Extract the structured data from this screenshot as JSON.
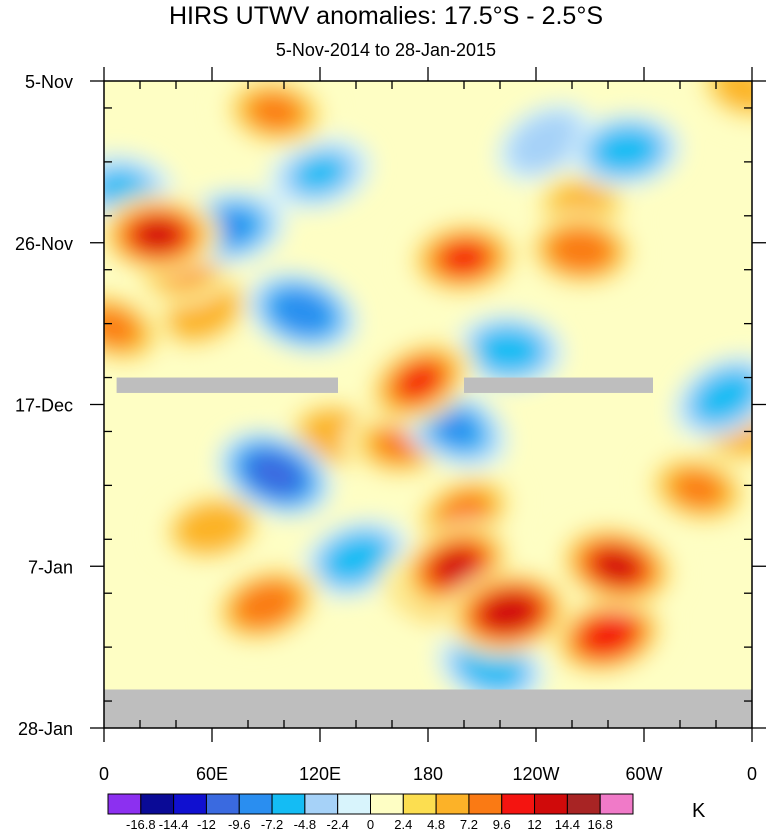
{
  "chart_data": {
    "type": "heatmap",
    "title": "HIRS UTWV anomalies: 17.5°S - 2.5°S",
    "subtitle": "5-Nov-2014 to 28-Jan-2015",
    "unit": "K",
    "x_axis": {
      "range_deg_east": [
        0,
        360
      ],
      "tick_values_deg_east": [
        0,
        60,
        120,
        180,
        240,
        300,
        360
      ],
      "tick_labels": [
        "0",
        "60E",
        "120E",
        "180",
        "120W",
        "60W",
        "0"
      ]
    },
    "y_axis": {
      "range_days": [
        0,
        84
      ],
      "tick_days": [
        0,
        21,
        42,
        63,
        84
      ],
      "tick_labels": [
        "5-Nov",
        "26-Nov",
        "17-Dec",
        "7-Jan",
        "28-Jan"
      ]
    },
    "colorbar": {
      "levels": [
        -16.8,
        -14.4,
        -12,
        -9.6,
        -7.2,
        -4.8,
        -2.4,
        0,
        2.4,
        4.8,
        7.2,
        9.6,
        12,
        14.4,
        16.8
      ],
      "labels": [
        "-16.8",
        "-14.4",
        "-12",
        "-9.6",
        "-7.2",
        "-4.8",
        "-2.4",
        "0",
        "2.4",
        "4.8",
        "7.2",
        "9.6",
        "12",
        "14.4",
        "16.8"
      ],
      "colors": [
        "#8c30f0",
        "#0a0a96",
        "#1010d0",
        "#3a6ae0",
        "#2a8ef0",
        "#14bcf4",
        "#a6d2f8",
        "#d8f4fc",
        "#fefec4",
        "#fcde50",
        "#fcb228",
        "#fa7a14",
        "#f41410",
        "#d00a0a",
        "#a82424",
        "#f07ac8"
      ]
    },
    "missing_color": "#bebebe",
    "missing_regions": [
      {
        "lon_range": [
          7,
          130
        ],
        "day_range": [
          38.5,
          40.5
        ]
      },
      {
        "lon_range": [
          200,
          305
        ],
        "day_range": [
          38.5,
          40.5
        ]
      },
      {
        "lon_range": [
          0,
          360
        ],
        "day_range": [
          79,
          84
        ]
      }
    ],
    "anomaly_features": [
      {
        "lon": 95,
        "day": 4,
        "value": 8
      },
      {
        "lon": 355,
        "day": 1,
        "value": 6
      },
      {
        "lon": 30,
        "day": 20,
        "value": 12
      },
      {
        "lon": 45,
        "day": 24,
        "value": 8
      },
      {
        "lon": 200,
        "day": 23,
        "value": 10
      },
      {
        "lon": 265,
        "day": 22,
        "value": 9
      },
      {
        "lon": 265,
        "day": 16,
        "value": 6
      },
      {
        "lon": 55,
        "day": 30,
        "value": 7
      },
      {
        "lon": 5,
        "day": 32,
        "value": 8
      },
      {
        "lon": 175,
        "day": 39,
        "value": 10
      },
      {
        "lon": 165,
        "day": 47,
        "value": 8
      },
      {
        "lon": 130,
        "day": 46,
        "value": 7
      },
      {
        "lon": 200,
        "day": 56,
        "value": 8
      },
      {
        "lon": 195,
        "day": 63,
        "value": 12
      },
      {
        "lon": 225,
        "day": 69,
        "value": 14
      },
      {
        "lon": 185,
        "day": 66,
        "value": 10
      },
      {
        "lon": 285,
        "day": 63,
        "value": 13
      },
      {
        "lon": 280,
        "day": 72,
        "value": 11
      },
      {
        "lon": 90,
        "day": 68,
        "value": 9
      },
      {
        "lon": 60,
        "day": 58,
        "value": 7
      },
      {
        "lon": 330,
        "day": 53,
        "value": 8
      },
      {
        "lon": 350,
        "day": 45,
        "value": 7
      },
      {
        "lon": 110,
        "day": 30,
        "value": -9
      },
      {
        "lon": 70,
        "day": 19,
        "value": -8
      },
      {
        "lon": 95,
        "day": 51,
        "value": -11
      },
      {
        "lon": 225,
        "day": 35,
        "value": -7
      },
      {
        "lon": 195,
        "day": 45,
        "value": -8
      },
      {
        "lon": 140,
        "day": 62,
        "value": -7
      },
      {
        "lon": 215,
        "day": 76,
        "value": -7
      },
      {
        "lon": 290,
        "day": 9,
        "value": -7
      },
      {
        "lon": 345,
        "day": 41,
        "value": -7
      },
      {
        "lon": 10,
        "day": 14,
        "value": -5
      },
      {
        "lon": 120,
        "day": 12,
        "value": -5
      },
      {
        "lon": 245,
        "day": 8,
        "value": -4
      }
    ]
  }
}
